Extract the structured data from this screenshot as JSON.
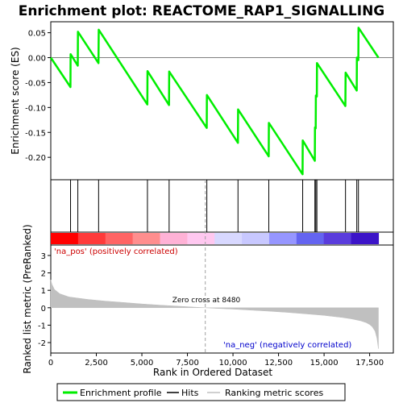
{
  "chart_data": {
    "type": "line",
    "title": "Enrichment plot: REACTOME_RAP1_SIGNALLING",
    "x_range": [
      0,
      18800
    ],
    "x_ticks": [
      0,
      2500,
      5000,
      7500,
      10000,
      12500,
      15000,
      17500
    ],
    "x_tick_labels": [
      "0",
      "2,500",
      "5,000",
      "7,500",
      "10,000",
      "12,500",
      "15,000",
      "17,500"
    ],
    "xlabel": "Rank in Ordered Dataset",
    "es_panel": {
      "ylabel": "Enrichment score (ES)",
      "ylim": [
        -0.245,
        0.072
      ],
      "y_ticks": [
        0.05,
        0.0,
        -0.05,
        -0.1,
        -0.15,
        -0.2
      ],
      "y_tick_labels": [
        "0.05",
        "0.00",
        "-0.05",
        "-0.10",
        "-0.15",
        "-0.20"
      ],
      "series": [
        {
          "name": "Enrichment profile",
          "color": "#00ee00",
          "x": [
            0,
            1080,
            1090,
            1480,
            1490,
            2620,
            2630,
            5300,
            5310,
            6490,
            6500,
            8560,
            8570,
            10270,
            10280,
            11960,
            11970,
            13820,
            13830,
            14490,
            14500,
            14540,
            14550,
            14600,
            14610,
            16170,
            16180,
            16790,
            16800,
            16880,
            16890,
            17980
          ],
          "y": [
            0.0,
            -0.059,
            0.007,
            -0.016,
            0.052,
            -0.011,
            0.056,
            -0.094,
            -0.027,
            -0.095,
            -0.028,
            -0.141,
            -0.075,
            -0.171,
            -0.104,
            -0.198,
            -0.131,
            -0.234,
            -0.166,
            -0.207,
            -0.14,
            -0.142,
            -0.076,
            -0.078,
            -0.011,
            -0.097,
            -0.03,
            -0.066,
            0.0,
            -0.005,
            0.06,
            0.0
          ]
        }
      ]
    },
    "hits": {
      "name": "Hits",
      "positions": [
        1085,
        1485,
        2625,
        5305,
        6495,
        8565,
        10275,
        11965,
        13825,
        14495,
        14545,
        14605,
        16175,
        16795,
        16885
      ]
    },
    "heatmap_colors": [
      "#ff0000",
      "#ff3a3a",
      "#ff6464",
      "#ff8e8e",
      "#ffb2d6",
      "#ffc8f0",
      "#d8d8ff",
      "#c8c8ff",
      "#9696ff",
      "#6464f0",
      "#5a3cdc",
      "#3c14c8"
    ],
    "metric_panel": {
      "ylabel": "Ranked list metric (PreRanked)",
      "ylim": [
        -2.6,
        3.6
      ],
      "y_ticks": [
        3,
        2,
        1,
        0,
        -1,
        -2
      ],
      "y_tick_labels": [
        "3",
        "2",
        "1",
        "0",
        "-1",
        "-2"
      ],
      "series": [
        {
          "name": "Ranking metric scores",
          "color": "#c0c0c0",
          "x": [
            0,
            60,
            200,
            500,
            1000,
            2000,
            3000,
            4000,
            5000,
            6000,
            7000,
            8000,
            8480,
            9000,
            10000,
            11000,
            12000,
            13000,
            14000,
            15000,
            16000,
            16500,
            17000,
            17300,
            17500,
            17650,
            17800,
            17900,
            17980
          ],
          "y": [
            1.6,
            1.35,
            1.05,
            0.8,
            0.62,
            0.48,
            0.38,
            0.3,
            0.22,
            0.15,
            0.09,
            0.03,
            0.0,
            -0.03,
            -0.08,
            -0.14,
            -0.2,
            -0.27,
            -0.35,
            -0.44,
            -0.56,
            -0.64,
            -0.75,
            -0.85,
            -0.96,
            -1.1,
            -1.35,
            -1.75,
            -2.35
          ]
        }
      ],
      "zero_cross_label": "Zero cross at 8480",
      "zero_cross_x": 8480,
      "pos_label": "'na_pos' (positively correlated)",
      "neg_label": "'na_neg' (negatively correlated)"
    },
    "legend": {
      "placement": "bottom",
      "items": [
        {
          "label": "Enrichment profile",
          "color": "#00ee00"
        },
        {
          "label": "Hits",
          "color": "#000000"
        },
        {
          "label": "Ranking metric scores",
          "color": "#c0c0c0"
        }
      ]
    }
  }
}
